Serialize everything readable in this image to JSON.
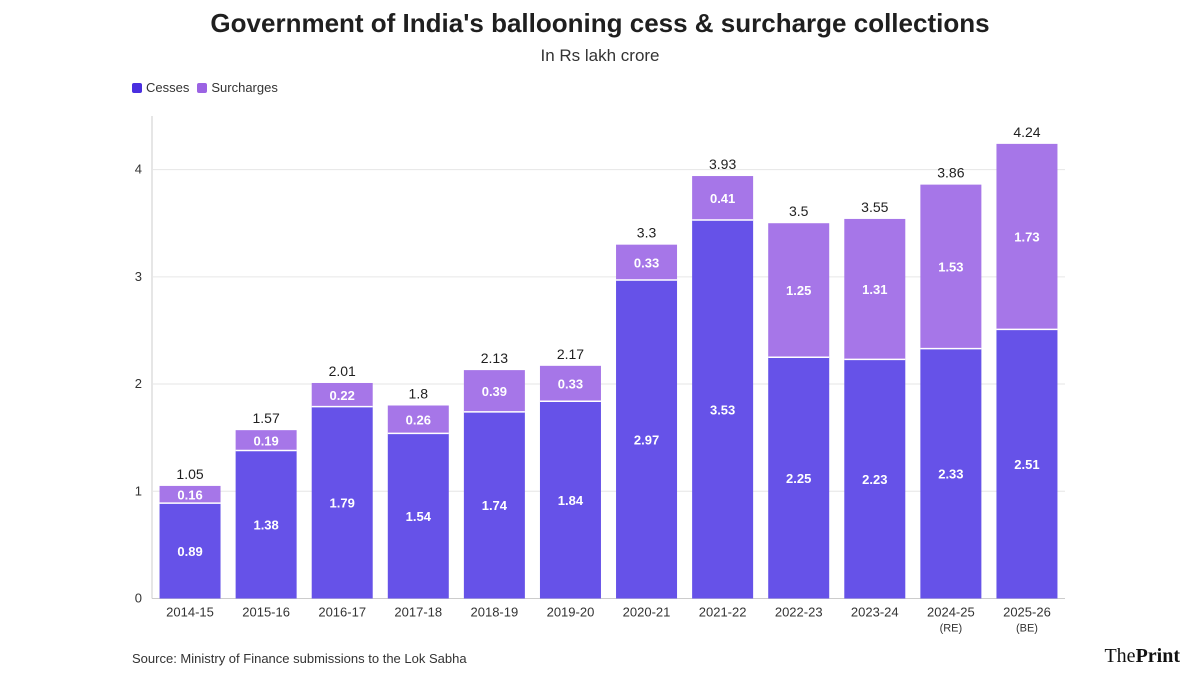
{
  "title": "Government of India's ballooning cess & surcharge collections",
  "subtitle": "In Rs lakh crore",
  "legend": {
    "cesses": "Cesses",
    "surcharges": "Surcharges"
  },
  "colors": {
    "cesses": "#6652e8",
    "surcharges": "#a676e8",
    "grid": "#e6e6e6",
    "axis": "#cccccc"
  },
  "source": "Source: Ministry of Finance submissions to the Lok Sabha",
  "logo": {
    "prefix": "The",
    "brand": "Print"
  },
  "chart_data": {
    "type": "bar",
    "stacked": true,
    "categories": [
      "2014-15",
      "2015-16",
      "2016-17",
      "2017-18",
      "2018-19",
      "2019-20",
      "2020-21",
      "2021-22",
      "2022-23",
      "2023-24",
      "2024-25",
      "2025-26"
    ],
    "category_sublabels": [
      "",
      "",
      "",
      "",
      "",
      "",
      "",
      "",
      "",
      "",
      "(RE)",
      "(BE)"
    ],
    "series": [
      {
        "name": "Cesses",
        "values": [
          0.89,
          1.38,
          1.79,
          1.54,
          1.74,
          1.84,
          2.97,
          3.53,
          2.25,
          2.23,
          2.33,
          2.51
        ]
      },
      {
        "name": "Surcharges",
        "values": [
          0.16,
          0.19,
          0.22,
          0.26,
          0.39,
          0.33,
          0.33,
          0.41,
          1.25,
          1.31,
          1.53,
          1.73
        ]
      }
    ],
    "totals": [
      "1.05",
      "1.57",
      "2.01",
      "1.8",
      "2.13",
      "2.17",
      "3.3",
      "3.93",
      "3.5",
      "3.55",
      "3.86",
      "4.24"
    ],
    "ylim": [
      0,
      4.5
    ],
    "yticks": [
      0,
      1,
      2,
      3,
      4
    ],
    "title": "Government of India's ballooning cess & surcharge collections",
    "xlabel": "",
    "ylabel": "In Rs lakh crore",
    "grid": true,
    "legend_position": "top-left"
  }
}
